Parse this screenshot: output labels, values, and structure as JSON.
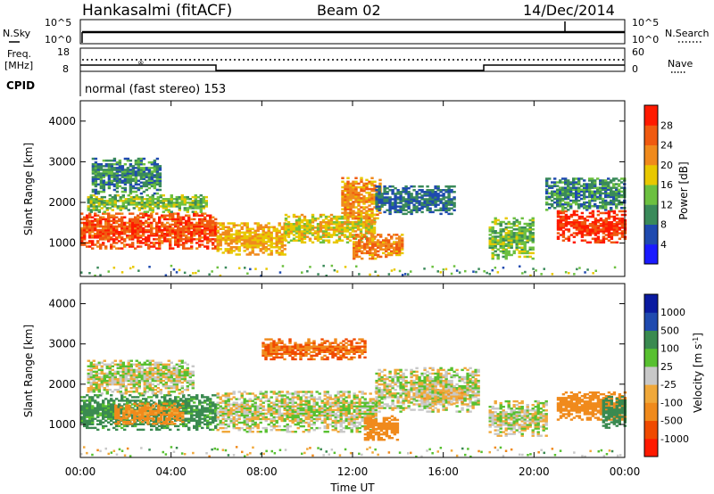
{
  "header": {
    "station": "Hankasalmi (fitACF)",
    "beam": "Beam 02",
    "date": "14/Dec/2014"
  },
  "strips": {
    "nsky_label": "N.Sky",
    "nsky_ticks": [
      "10^5",
      "10^0"
    ],
    "nsearch_label": "N.Search",
    "nsearch_ticks": [
      "10^5",
      "10^0"
    ],
    "freq_label_line1": "Freq.",
    "freq_label_line2": "[MHz]",
    "freq_ticks": [
      "18",
      "8"
    ],
    "nave_label": "Nave",
    "nave_ticks": [
      "60",
      "0"
    ],
    "cpid_label": "CPID",
    "cpid_text": "normal (fast stereo) 153"
  },
  "x_axis": {
    "label": "Time UT",
    "ticks": [
      "00:00",
      "04:00",
      "08:00",
      "12:00",
      "16:00",
      "20:00",
      "00:00"
    ]
  },
  "colors": {
    "power": [
      "#1a1aff",
      "#1f4aaf",
      "#3a8a5a",
      "#6cc040",
      "#e8c800",
      "#f08a1c",
      "#f05a10",
      "#ff1a00"
    ],
    "velocity": [
      "#ff1a00",
      "#f04a00",
      "#f08a1c",
      "#f0a83a",
      "#c8c8c8",
      "#58c030",
      "#3a8a50",
      "#1f4aaf",
      "#0a1aa0"
    ]
  },
  "chart_data": [
    {
      "type": "heatmap",
      "title": "Power",
      "xlabel": "Time UT",
      "ylabel": "Slant Range [km]",
      "x_ticks": [
        "00:00",
        "04:00",
        "08:00",
        "12:00",
        "16:00",
        "20:00",
        "00:00"
      ],
      "xlim_hours": [
        0,
        24
      ],
      "ylim": [
        180,
        4500
      ],
      "y_ticks": [
        1000,
        2000,
        3000,
        4000
      ],
      "colorbar_label": "Power [dB]",
      "colorbar_ticks": [
        4,
        8,
        12,
        16,
        20,
        24,
        28
      ],
      "colorbar_range": [
        0,
        32
      ],
      "regions": [
        {
          "t0": 0.0,
          "t1": 6.0,
          "r0": 850,
          "r1": 1750,
          "value": 27
        },
        {
          "t0": 0.3,
          "t1": 5.5,
          "r0": 1750,
          "r1": 2200,
          "value": 14
        },
        {
          "t0": 0.5,
          "t1": 3.5,
          "r0": 2200,
          "r1": 3100,
          "value": 10
        },
        {
          "t0": 6.0,
          "t1": 9.0,
          "r0": 700,
          "r1": 1500,
          "value": 20
        },
        {
          "t0": 9.0,
          "t1": 13.0,
          "r0": 1000,
          "r1": 1700,
          "value": 18
        },
        {
          "t0": 11.5,
          "t1": 13.2,
          "r0": 1500,
          "r1": 2600,
          "value": 22
        },
        {
          "t0": 12.0,
          "t1": 14.2,
          "r0": 600,
          "r1": 1200,
          "value": 23
        },
        {
          "t0": 13.0,
          "t1": 16.5,
          "r0": 1700,
          "r1": 2400,
          "value": 8
        },
        {
          "t0": 18.0,
          "t1": 20.0,
          "r0": 600,
          "r1": 1600,
          "value": 14
        },
        {
          "t0": 21.0,
          "t1": 24.0,
          "r0": 1000,
          "r1": 1800,
          "value": 29
        },
        {
          "t0": 20.5,
          "t1": 24.0,
          "r0": 1800,
          "r1": 2600,
          "value": 10
        }
      ]
    },
    {
      "type": "heatmap",
      "title": "Velocity",
      "xlabel": "Time UT",
      "ylabel": "Slant Range [km]",
      "x_ticks": [
        "00:00",
        "04:00",
        "08:00",
        "12:00",
        "16:00",
        "20:00",
        "00:00"
      ],
      "xlim_hours": [
        0,
        24
      ],
      "ylim": [
        180,
        4500
      ],
      "y_ticks": [
        1000,
        2000,
        3000,
        4000
      ],
      "colorbar_label": "Velocity [m s^-1]",
      "colorbar_ticks": [
        "1000",
        "500",
        "100",
        "25",
        "-25",
        "-100",
        "-500",
        "-1000"
      ],
      "regions": [
        {
          "t0": 0.0,
          "t1": 6.0,
          "r0": 850,
          "r1": 1750,
          "value": 150
        },
        {
          "t0": 1.5,
          "t1": 4.5,
          "r0": 1000,
          "r1": 1500,
          "value": -150
        },
        {
          "t0": 0.3,
          "t1": 5.0,
          "r0": 1750,
          "r1": 2600,
          "value": 0
        },
        {
          "t0": 6.0,
          "t1": 13.0,
          "r0": 800,
          "r1": 1800,
          "value": 0
        },
        {
          "t0": 12.5,
          "t1": 14.0,
          "r0": 600,
          "r1": 1200,
          "value": -400
        },
        {
          "t0": 13.0,
          "t1": 17.5,
          "r0": 1300,
          "r1": 2400,
          "value": 0
        },
        {
          "t0": 15.0,
          "t1": 17.0,
          "r0": 1500,
          "r1": 1900,
          "value": -40
        },
        {
          "t0": 18.0,
          "t1": 20.5,
          "r0": 700,
          "r1": 1600,
          "value": 0
        },
        {
          "t0": 21.0,
          "t1": 24.0,
          "r0": 1100,
          "r1": 1800,
          "value": -300
        },
        {
          "t0": 8.0,
          "t1": 12.5,
          "r0": 2600,
          "r1": 3100,
          "value": -500
        },
        {
          "t0": 23.0,
          "t1": 24.0,
          "r0": 900,
          "r1": 1700,
          "value": 400
        }
      ]
    }
  ]
}
